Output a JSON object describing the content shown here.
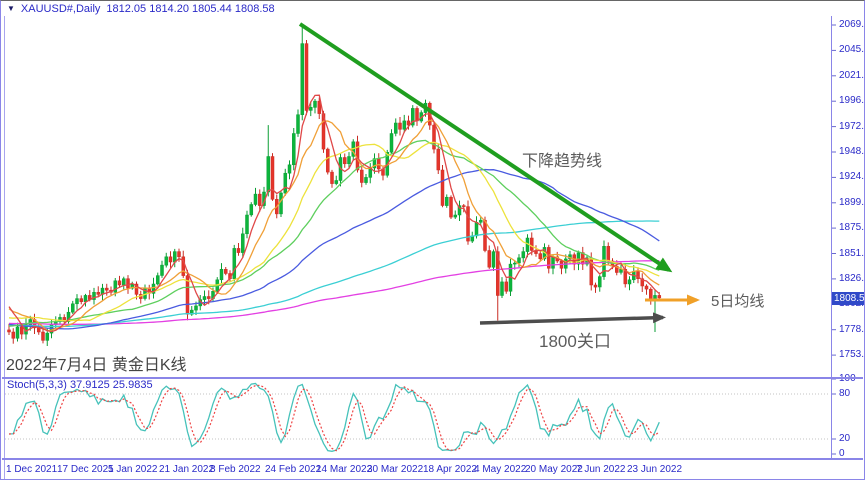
{
  "topbar": {
    "collapse_icon": "▼",
    "symbol": "XAUUSD#,Daily",
    "ohlc_text": "1812.05 1814.20 1805.44 1808.58"
  },
  "price_axis": {
    "current_badge": "1808.58"
  },
  "stoch_panel": {
    "label": "Stoch(5,3,3) 37.9125 25.9835",
    "scale_labels": [
      "100",
      "80",
      "20",
      "0"
    ]
  },
  "annotations": {
    "trendline_label": "下降趋势线",
    "ma5_label": "5日均线",
    "level_label": "1800关口",
    "caption": "2022年7月4日 黄金日K线"
  },
  "colors": {
    "axis_text": "#2a2ac8",
    "frame": "#8a85e8",
    "tick_dash": "#6a6ad0",
    "up_fill": "#0db53c",
    "up_stroke": "#0a9e34",
    "down_fill": "#e5352b",
    "down_stroke": "#c92d24",
    "trendline": "#1f9e1f",
    "arrow_orange": "#f0a028",
    "arrow_dark": "#4d4d4d",
    "badge_bg": "#3049c8",
    "stoch_k": "#46c2ba",
    "stoch_d": "#ee4444",
    "stoch_level": "#c3c3c3"
  },
  "chart_data": {
    "type": "candlestick",
    "symbol": "XAUUSD#",
    "timeframe": "Daily",
    "title": "2022年7月4日 黄金日K线",
    "current_ohlc": {
      "open": 1812.05,
      "high": 1814.2,
      "low": 1805.44,
      "close": 1808.58
    },
    "ylim": [
      1736,
      2078
    ],
    "price_ticks": [
      "2069.80",
      "2045.50",
      "2021.20",
      "1996.90",
      "1972.60",
      "1948.30",
      "1924.00",
      "1899.70",
      "1875.40",
      "1851.10",
      "1826.80",
      "1802.50",
      "1778.20",
      "1753.90"
    ],
    "date_ticks": [
      "1 Dec 2021",
      "17 Dec 2021",
      "5 Jan 2022",
      "21 Jan 2022",
      "8 Feb 2022",
      "24 Feb 2022",
      "14 Mar 2022",
      "30 Mar 2022",
      "18 Apr 2022",
      "4 May 2022",
      "20 May 2022",
      "7 Jun 2022",
      "23 Jun 2022"
    ],
    "date_tick_indices": [
      0,
      12,
      24,
      36,
      48,
      61,
      73,
      85,
      98,
      110,
      122,
      134,
      146
    ],
    "first_open": 1778,
    "closes": [
      1776,
      1770,
      1781,
      1774,
      1783,
      1788,
      1780,
      1776,
      1768,
      1775,
      1783,
      1786,
      1790,
      1786,
      1795,
      1803,
      1808,
      1805,
      1811,
      1807,
      1814,
      1812,
      1818,
      1816,
      1814,
      1825,
      1821,
      1827,
      1818,
      1822,
      1812,
      1808,
      1818,
      1813,
      1822,
      1830,
      1840,
      1848,
      1843,
      1853,
      1848,
      1830,
      1793,
      1797,
      1801,
      1807,
      1810,
      1808,
      1815,
      1826,
      1836,
      1832,
      1827,
      1856,
      1852,
      1870,
      1888,
      1898,
      1908,
      1897,
      1910,
      1944,
      1903,
      1889,
      1909,
      1928,
      1936,
      1966,
      1984,
      2052,
      1988,
      1991,
      1997,
      1985,
      1951,
      1929,
      1918,
      1921,
      1943,
      1937,
      1944,
      1958,
      1931,
      1919,
      1924,
      1933,
      1942,
      1932,
      1926,
      1948,
      1966,
      1976,
      1970,
      1978,
      1974,
      1990,
      1978,
      1986,
      1995,
      1974,
      1951,
      1931,
      1897,
      1905,
      1886,
      1888,
      1897,
      1896,
      1863,
      1868,
      1881,
      1883,
      1854,
      1838,
      1853,
      1811,
      1824,
      1815,
      1841,
      1842,
      1847,
      1853,
      1866,
      1854,
      1851,
      1846,
      1857,
      1837,
      1848,
      1844,
      1837,
      1846,
      1850,
      1841,
      1852,
      1841,
      1847,
      1821,
      1819,
      1829,
      1858,
      1844,
      1839,
      1833,
      1836,
      1822,
      1826,
      1834,
      1827,
      1820,
      1817,
      1807,
      1811,
      1808.58
    ],
    "wick_overrides": {
      "61": {
        "high": 1974
      },
      "69": {
        "high": 2070
      },
      "115": {
        "low": 1787
      },
      "152": {
        "low": 1776
      },
      "153": {
        "high": 1814.2,
        "low": 1805.44
      }
    },
    "moving_averages": [
      {
        "period": 200,
        "color": "#e340e3"
      },
      {
        "period": 120,
        "color": "#3bcfd4"
      },
      {
        "period": 60,
        "color": "#4a5be0"
      },
      {
        "period": 30,
        "color": "#5ecf5e"
      },
      {
        "period": 20,
        "color": "#ede23c"
      },
      {
        "period": 10,
        "color": "#f0a038"
      },
      {
        "period": 5,
        "color": "#e04848"
      }
    ],
    "stochastic": {
      "k_period": 5,
      "d_period": 3,
      "slowing": 3,
      "k_value": 37.9125,
      "d_value": 25.9835,
      "levels": [
        80,
        20
      ],
      "scale": [
        100,
        80,
        20,
        0
      ]
    }
  }
}
